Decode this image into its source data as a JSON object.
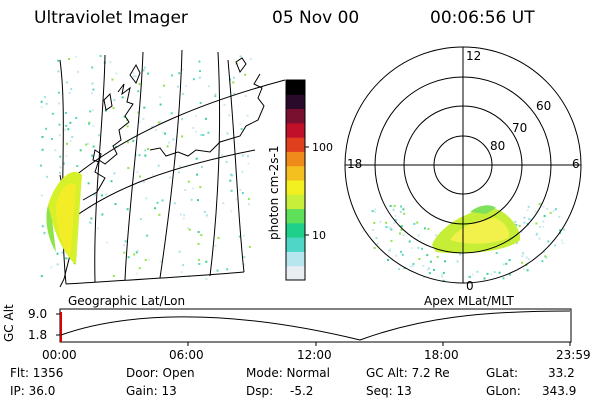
{
  "header": {
    "instrument": "Ultraviolet Imager",
    "date": "05 Nov 00",
    "time": "00:06:56 UT"
  },
  "colorbar": {
    "label": "photon cm-2s-1",
    "ticks": [
      "100",
      "10"
    ],
    "colors": [
      "#e8eef2",
      "#b8e6ee",
      "#4fd6c6",
      "#1fd08a",
      "#5fe05a",
      "#c8ef3a",
      "#f2f020",
      "#f4c020",
      "#f08a1a",
      "#e0401e",
      "#c0102a",
      "#7a1030",
      "#2a0a2a",
      "#000000"
    ]
  },
  "geo_panel": {
    "label": "Geographic Lat/Lon"
  },
  "polar_panel": {
    "label": "Apex MLat/MLT",
    "mlt_labels": [
      "12",
      "18",
      "6",
      "0"
    ],
    "lat_labels": [
      "60",
      "70",
      "80"
    ]
  },
  "altitude_plot": {
    "ylabel": "GC Alt",
    "y_ticks": [
      "9.0",
      "1.8"
    ],
    "x_ticks": [
      "00:00",
      "06:00",
      "12:00",
      "18:00",
      "23:59"
    ]
  },
  "status": {
    "flt": "Flt: 1356",
    "ip": "IP: 36.0",
    "door": "Door: Open",
    "gain": "Gain: 13",
    "mode": "Mode: Normal",
    "dsp": "Dsp:",
    "dsp_value": "-5.2",
    "gc_alt": "GC Alt: 7.2 Re",
    "seq": "Seq: 13",
    "glat": "GLat:",
    "glat_value": "33.2",
    "glon": "GLon:",
    "glon_value": "343.9"
  }
}
